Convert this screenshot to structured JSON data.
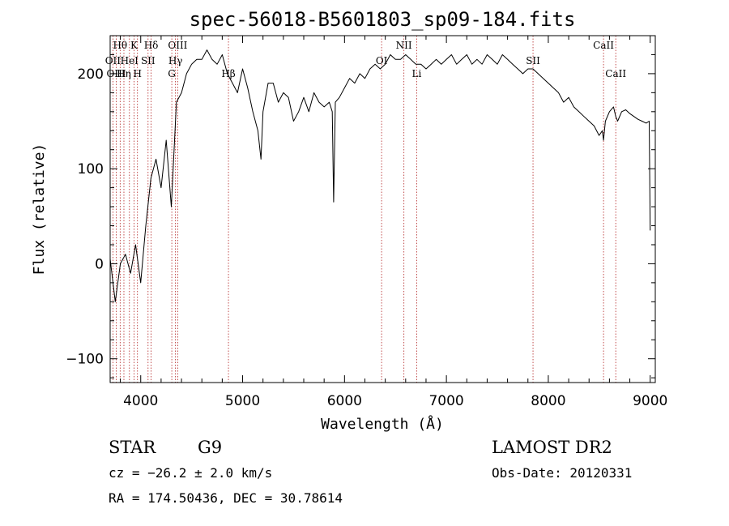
{
  "chart_data": {
    "type": "line",
    "title": "spec-56018-B5601803_sp09-184.fits",
    "xlabel": "Wavelength (Å)",
    "ylabel": "Flux (relative)",
    "xlim": [
      3700,
      9050
    ],
    "ylim": [
      -125,
      240
    ],
    "xticks": [
      4000,
      5000,
      6000,
      7000,
      8000,
      9000
    ],
    "yticks": [
      -100,
      0,
      100,
      200
    ],
    "grid": false,
    "series": [
      {
        "x": [
          3700,
          3750,
          3800,
          3850,
          3900,
          3950,
          4000,
          4050,
          4100,
          4150,
          4200,
          4250,
          4300,
          4350,
          4400,
          4450,
          4500,
          4550,
          4600,
          4650,
          4700,
          4750,
          4800,
          4850,
          4900,
          4950,
          5000,
          5050,
          5100,
          5150,
          5180,
          5200,
          5250,
          5300,
          5350,
          5400,
          5450,
          5500,
          5550,
          5600,
          5650,
          5700,
          5750,
          5800,
          5850,
          5880,
          5893,
          5910,
          5950,
          6000,
          6050,
          6100,
          6150,
          6200,
          6250,
          6300,
          6350,
          6400,
          6450,
          6500,
          6550,
          6600,
          6650,
          6700,
          6750,
          6800,
          6850,
          6900,
          6950,
          7000,
          7050,
          7100,
          7150,
          7200,
          7250,
          7300,
          7350,
          7400,
          7450,
          7500,
          7550,
          7600,
          7650,
          7700,
          7750,
          7800,
          7850,
          7900,
          7950,
          8000,
          8050,
          8100,
          8150,
          8200,
          8250,
          8300,
          8350,
          8400,
          8450,
          8498,
          8530,
          8542,
          8560,
          8600,
          8640,
          8662,
          8680,
          8720,
          8760,
          8800,
          8840,
          8880,
          8920,
          8960,
          8990,
          9000
        ],
        "y": [
          5,
          -40,
          0,
          10,
          -10,
          20,
          -20,
          40,
          90,
          110,
          80,
          130,
          60,
          170,
          180,
          200,
          210,
          215,
          215,
          225,
          215,
          210,
          220,
          200,
          190,
          180,
          205,
          185,
          160,
          140,
          110,
          160,
          190,
          190,
          170,
          180,
          175,
          150,
          160,
          175,
          160,
          180,
          170,
          165,
          170,
          160,
          65,
          170,
          175,
          185,
          195,
          190,
          200,
          195,
          205,
          210,
          205,
          210,
          220,
          215,
          215,
          220,
          215,
          210,
          210,
          205,
          210,
          215,
          210,
          215,
          220,
          210,
          215,
          220,
          210,
          215,
          210,
          220,
          215,
          210,
          220,
          215,
          210,
          205,
          200,
          205,
          205,
          200,
          195,
          190,
          185,
          180,
          170,
          175,
          165,
          160,
          155,
          150,
          145,
          135,
          140,
          130,
          150,
          160,
          165,
          155,
          150,
          160,
          162,
          158,
          155,
          152,
          150,
          148,
          150,
          35
        ]
      }
    ],
    "lines": [
      {
        "label": "Hθ",
        "x": 3798,
        "row": 0
      },
      {
        "label": "K",
        "x": 3934,
        "row": 0
      },
      {
        "label": "Hδ",
        "x": 4102,
        "row": 0
      },
      {
        "label": "OIII",
        "x": 4363,
        "row": 0
      },
      {
        "label": "NII",
        "x": 6583,
        "row": 0
      },
      {
        "label": "CaII",
        "x": 8542,
        "row": 0
      },
      {
        "label": "OII",
        "x": 3727,
        "row": 1
      },
      {
        "label": "HeI",
        "x": 3889,
        "row": 1
      },
      {
        "label": "SII",
        "x": 4072,
        "row": 1
      },
      {
        "label": "Hγ",
        "x": 4341,
        "row": 1
      },
      {
        "label": "OI",
        "x": 6364,
        "row": 1
      },
      {
        "label": "SII",
        "x": 7850,
        "row": 1
      },
      {
        "label": "OIII",
        "x": 3760,
        "row": 2
      },
      {
        "label": "Hη",
        "x": 3835,
        "row": 2
      },
      {
        "label": "H",
        "x": 3968,
        "row": 2
      },
      {
        "label": "G",
        "x": 4305,
        "row": 2
      },
      {
        "label": "Hβ",
        "x": 4861,
        "row": 2
      },
      {
        "label": "Li",
        "x": 6708,
        "row": 2
      },
      {
        "label": "CaII",
        "x": 8662,
        "row": 2
      }
    ]
  },
  "info": {
    "class": "STAR",
    "subclass": "G9",
    "survey": "LAMOST DR2",
    "cz": "cz = −26.2 ± 2.0 km/s",
    "obs_date": "Obs-Date: 20120331",
    "radec": "RA = 174.50436, DEC =  30.78614"
  }
}
